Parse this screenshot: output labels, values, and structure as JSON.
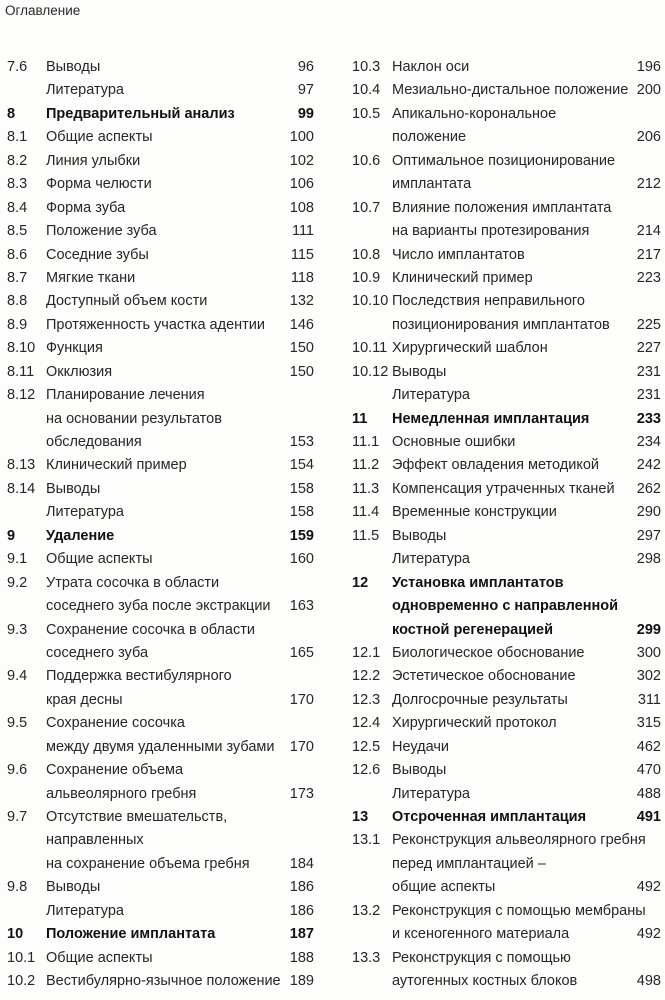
{
  "header": {
    "title": "Оглавление"
  },
  "columns": [
    {
      "entries": [
        {
          "num": "7.6",
          "lines": [
            "Выводы"
          ],
          "page": "96"
        },
        {
          "num": "",
          "lines": [
            "Литература"
          ],
          "page": "97"
        },
        {
          "num": "8",
          "lines": [
            "Предварительный анализ"
          ],
          "page": "99",
          "bold": true
        },
        {
          "num": "8.1",
          "lines": [
            "Общие аспекты"
          ],
          "page": "100"
        },
        {
          "num": "8.2",
          "lines": [
            "Линия улыбки"
          ],
          "page": "102"
        },
        {
          "num": "8.3",
          "lines": [
            "Форма челюсти"
          ],
          "page": "106"
        },
        {
          "num": "8.4",
          "lines": [
            "Форма зуба"
          ],
          "page": "108"
        },
        {
          "num": "8.5",
          "lines": [
            "Положение зуба"
          ],
          "page": "111"
        },
        {
          "num": "8.6",
          "lines": [
            "Соседние зубы"
          ],
          "page": "115"
        },
        {
          "num": "8.7",
          "lines": [
            "Мягкие ткани"
          ],
          "page": "118"
        },
        {
          "num": "8.8",
          "lines": [
            "Доступный объем кости"
          ],
          "page": "132"
        },
        {
          "num": "8.9",
          "lines": [
            "Протяженность участка адентии"
          ],
          "page": "146"
        },
        {
          "num": "8.10",
          "lines": [
            "Функция"
          ],
          "page": "150"
        },
        {
          "num": "8.11",
          "lines": [
            "Окклюзия"
          ],
          "page": "150"
        },
        {
          "num": "8.12",
          "lines": [
            "Планирование лечения",
            "на основании результатов",
            "обследования"
          ],
          "page": "153"
        },
        {
          "num": "8.13",
          "lines": [
            "Клинический пример"
          ],
          "page": "154"
        },
        {
          "num": "8.14",
          "lines": [
            "Выводы"
          ],
          "page": "158"
        },
        {
          "num": "",
          "lines": [
            "Литература"
          ],
          "page": "158"
        },
        {
          "num": "9",
          "lines": [
            "Удаление"
          ],
          "page": "159",
          "bold": true
        },
        {
          "num": "9.1",
          "lines": [
            "Общие аспекты"
          ],
          "page": "160"
        },
        {
          "num": "9.2",
          "lines": [
            "Утрата сосочка в области",
            "соседнего зуба после экстракции"
          ],
          "page": "163"
        },
        {
          "num": "9.3",
          "lines": [
            "Сохранение сосочка в области",
            "соседнего зуба"
          ],
          "page": "165"
        },
        {
          "num": "9.4",
          "lines": [
            "Поддержка вестибулярного",
            "края десны"
          ],
          "page": "170"
        },
        {
          "num": "9.5",
          "lines": [
            "Сохранение сосочка",
            "между двумя удаленными зубами"
          ],
          "page": "170"
        },
        {
          "num": "9.6",
          "lines": [
            "Сохранение объема",
            "альвеолярного гребня"
          ],
          "page": "173"
        },
        {
          "num": "9.7",
          "lines": [
            "Отсутствие вмешательств,",
            "направленных",
            "на сохранение объема гребня"
          ],
          "page": "184"
        },
        {
          "num": "9.8",
          "lines": [
            "Выводы"
          ],
          "page": "186"
        },
        {
          "num": "",
          "lines": [
            "Литература"
          ],
          "page": "186"
        },
        {
          "num": "10",
          "lines": [
            "Положение имплантата"
          ],
          "page": "187",
          "bold": true
        },
        {
          "num": "10.1",
          "lines": [
            "Общие аспекты"
          ],
          "page": "188"
        },
        {
          "num": "10.2",
          "lines": [
            "Вестибулярно-язычное положение"
          ],
          "page": "189"
        }
      ]
    },
    {
      "entries": [
        {
          "num": "10.3",
          "lines": [
            "Наклон оси"
          ],
          "page": "196"
        },
        {
          "num": "10.4",
          "lines": [
            "Мезиально-дистальное положение"
          ],
          "page": "200"
        },
        {
          "num": "10.5",
          "lines": [
            "Апикально-корональное",
            "положение"
          ],
          "page": "206"
        },
        {
          "num": "10.6",
          "lines": [
            "Оптимальное позиционирование",
            "имплантата"
          ],
          "page": "212"
        },
        {
          "num": "10.7",
          "lines": [
            "Влияние положения имплантата",
            "на варианты протезирования"
          ],
          "page": "214"
        },
        {
          "num": "10.8",
          "lines": [
            "Число имплантатов"
          ],
          "page": "217"
        },
        {
          "num": "10.9",
          "lines": [
            "Клинический пример"
          ],
          "page": "223"
        },
        {
          "num": "10.10",
          "lines": [
            "Последствия неправильного",
            "позиционирования имплантатов"
          ],
          "page": "225"
        },
        {
          "num": "10.11",
          "lines": [
            "Хирургический шаблон"
          ],
          "page": "227"
        },
        {
          "num": "10.12",
          "lines": [
            "Выводы"
          ],
          "page": "231"
        },
        {
          "num": "",
          "lines": [
            "Литература"
          ],
          "page": "231"
        },
        {
          "num": "11",
          "lines": [
            "Немедленная имплантация"
          ],
          "page": "233",
          "bold": true
        },
        {
          "num": "11.1",
          "lines": [
            "Основные ошибки"
          ],
          "page": "234"
        },
        {
          "num": "11.2",
          "lines": [
            "Эффект овладения методикой"
          ],
          "page": "242"
        },
        {
          "num": "11.3",
          "lines": [
            "Компенсация утраченных тканей"
          ],
          "page": "262"
        },
        {
          "num": "11.4",
          "lines": [
            "Временные конструкции"
          ],
          "page": "290"
        },
        {
          "num": "11.5",
          "lines": [
            "Выводы"
          ],
          "page": "297"
        },
        {
          "num": "",
          "lines": [
            "Литература"
          ],
          "page": "298"
        },
        {
          "num": "12",
          "lines": [
            "Установка имплантатов",
            "одновременно с направленной",
            "костной регенерацией"
          ],
          "page": "299",
          "bold": true
        },
        {
          "num": "12.1",
          "lines": [
            "Биологическое обоснование"
          ],
          "page": "300"
        },
        {
          "num": "12.2",
          "lines": [
            "Эстетическое обоснование"
          ],
          "page": "302"
        },
        {
          "num": "12.3",
          "lines": [
            "Долгосрочные результаты"
          ],
          "page": "311"
        },
        {
          "num": "12.4",
          "lines": [
            "Хирургический протокол"
          ],
          "page": "315"
        },
        {
          "num": "12.5",
          "lines": [
            "Неудачи"
          ],
          "page": "462"
        },
        {
          "num": "12.6",
          "lines": [
            "Выводы"
          ],
          "page": "470"
        },
        {
          "num": "",
          "lines": [
            "Литература"
          ],
          "page": "488"
        },
        {
          "num": "13",
          "lines": [
            "Отсроченная имплантация"
          ],
          "page": "491",
          "bold": true
        },
        {
          "num": "13.1",
          "lines": [
            "Реконструкция альвеолярного гребня",
            "перед имплантацией –",
            "общие аспекты"
          ],
          "page": "492"
        },
        {
          "num": "13.2",
          "lines": [
            "Реконструкция с помощью мембраны",
            "и ксеногенного материала"
          ],
          "page": "492"
        },
        {
          "num": "13.3",
          "lines": [
            "Реконструкция с помощью",
            "аутогенных костных блоков"
          ],
          "page": "498"
        }
      ]
    }
  ]
}
